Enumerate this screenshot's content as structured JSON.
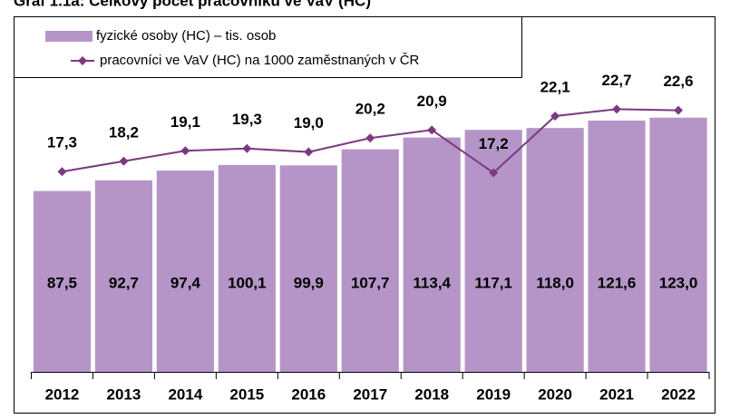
{
  "chart_data": {
    "type": "bar_line",
    "title": "Graf 1.1a: Celkový počet pracovníků ve VaV (HC)",
    "categories": [
      "2012",
      "2013",
      "2014",
      "2015",
      "2016",
      "2017",
      "2018",
      "2019",
      "2020",
      "2021",
      "2022"
    ],
    "ylim": [
      0,
      140
    ],
    "y2lim": [
      0,
      25
    ],
    "legend": "top-left",
    "series": [
      {
        "name": "fyzické osoby (HC) – tis. osob",
        "type": "bar",
        "color": "#b595c8",
        "values": [
          87.5,
          92.7,
          97.4,
          100.1,
          99.9,
          107.7,
          113.4,
          117.1,
          118.0,
          121.6,
          123.0
        ],
        "value_labels": [
          "87,5",
          "92,7",
          "97,4",
          "100,1",
          "99,9",
          "107,7",
          "113,4",
          "117,1",
          "118,0",
          "121,6",
          "123,0"
        ]
      },
      {
        "name": "pracovníci ve VaV (HC) na 1000 zaměstnaných v ČR",
        "type": "line",
        "axis": "y2",
        "color": "#7a3a80",
        "values": [
          17.3,
          18.2,
          19.1,
          19.3,
          19.0,
          20.2,
          20.9,
          17.2,
          22.1,
          22.7,
          22.6
        ],
        "value_labels": [
          "17,3",
          "18,2",
          "19,1",
          "19,3",
          "19,0",
          "20,2",
          "20,9",
          "17,2",
          "22,1",
          "22,7",
          "22,6"
        ]
      }
    ]
  }
}
